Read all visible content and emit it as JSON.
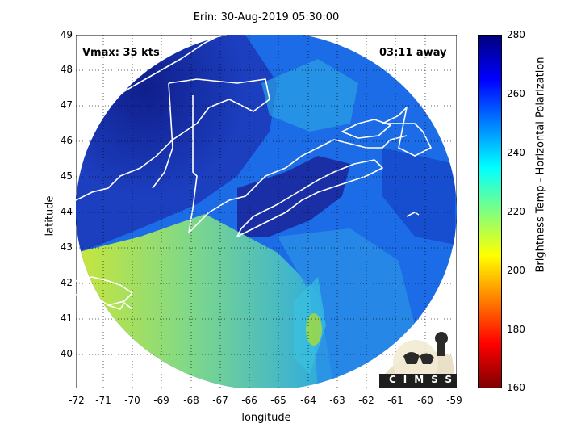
{
  "title": "Erin: 30-Aug-2019 05:30:00",
  "vmax_label": "Vmax: 35 kts",
  "time_away": "03:11 away",
  "xlabel": "longitude",
  "ylabel": "latitude",
  "colorbar": {
    "label": "Brightness Temp - Horizontal Polarization",
    "ticks": [
      "280",
      "260",
      "240",
      "220",
      "200",
      "180",
      "160"
    ],
    "range": [
      160,
      280
    ],
    "colors": [
      "#7f0000",
      "#ff0000",
      "#ff8000",
      "#ffff00",
      "#80ff80",
      "#00ffff",
      "#0080ff",
      "#0000ff",
      "#00007f"
    ]
  },
  "x_ticks": [
    "-72",
    "-71",
    "-70",
    "-69",
    "-68",
    "-67",
    "-66",
    "-65",
    "-64",
    "-63",
    "-62",
    "-61",
    "-60",
    "-59"
  ],
  "y_ticks": [
    "49",
    "48",
    "47",
    "46",
    "45",
    "44",
    "43",
    "42",
    "41",
    "40"
  ],
  "logo": "CIMSS",
  "colors": {
    "land_cold": "#1b2fa8",
    "ocean_mid": "#1f6ee8",
    "warm_sea": "#b9e24a",
    "coast": "#ffffff"
  }
}
